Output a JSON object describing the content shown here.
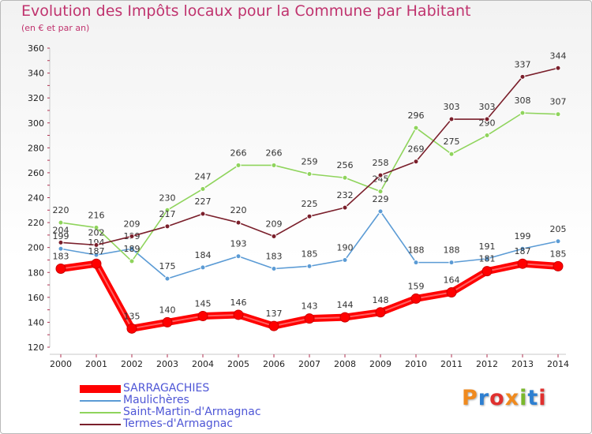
{
  "title": "Evolution des Impôts locaux pour la Commune par Habitant",
  "subtitle": "(en € et par an)",
  "logo": "Proxiti",
  "chart_data": {
    "type": "line",
    "title": "Evolution des Impôts locaux pour la Commune par Habitant",
    "subtitle": "(en € et par an)",
    "x": [
      "2000",
      "2001",
      "2002",
      "2003",
      "2004",
      "2005",
      "2006",
      "2007",
      "2008",
      "2009",
      "2010",
      "2011",
      "2012",
      "2013",
      "2014"
    ],
    "y_ticks": [
      "120",
      "140",
      "160",
      "180",
      "200",
      "220",
      "240",
      "260",
      "280",
      "300",
      "320",
      "340",
      "360"
    ],
    "ylim": [
      120,
      360
    ],
    "grid": false,
    "legend_position": "bottom-left",
    "series": [
      {
        "name": "SARRAGACHIES",
        "color": "#ff0000",
        "bold": true,
        "values": [
          183,
          187,
          135,
          140,
          145,
          146,
          137,
          143,
          144,
          148,
          159,
          164,
          181,
          187,
          185
        ]
      },
      {
        "name": "Maulichères",
        "color": "#5b9bd5",
        "values": [
          199,
          194,
          199,
          175,
          184,
          193,
          183,
          185,
          190,
          229,
          188,
          188,
          191,
          199,
          205
        ]
      },
      {
        "name": "Saint-Martin-d'Armagnac",
        "color": "#8fd45c",
        "values": [
          220,
          216,
          189,
          230,
          247,
          266,
          266,
          259,
          256,
          245,
          296,
          275,
          290,
          308,
          307
        ]
      },
      {
        "name": "Termes-d'Armagnac",
        "color": "#7a1f2b",
        "values": [
          204,
          202,
          209,
          217,
          227,
          220,
          209,
          225,
          232,
          258,
          269,
          303,
          303,
          337,
          344
        ]
      }
    ]
  },
  "logo_colors": [
    "#f08a1e",
    "#2d7fd1",
    "#e0302e",
    "#f08a1e",
    "#7ab82d",
    "#2d7fd1",
    "#e0302e"
  ]
}
